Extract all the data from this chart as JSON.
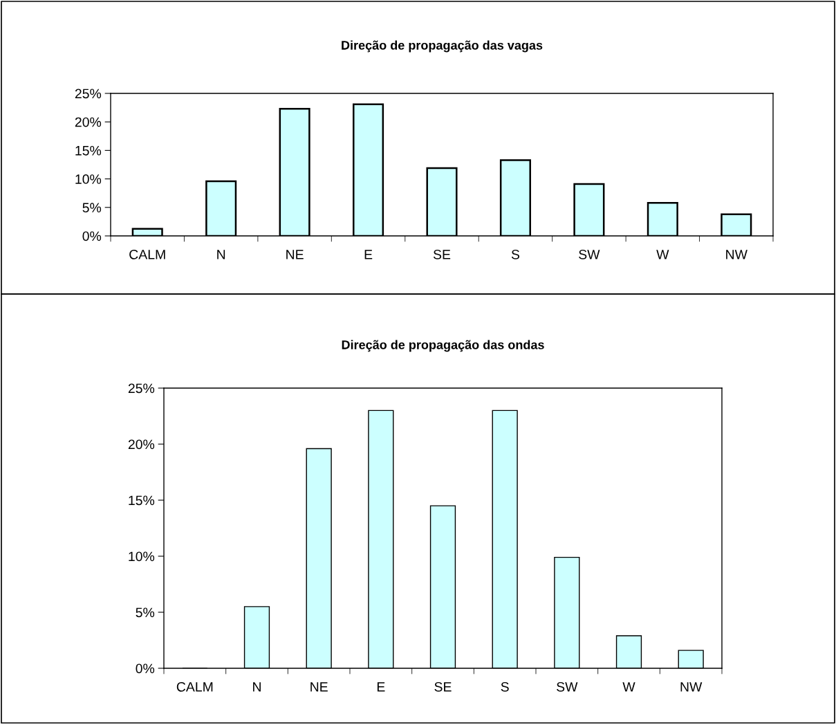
{
  "chart_data": [
    {
      "type": "bar",
      "title": "Direção de propagação das vagas",
      "categories": [
        "CALM",
        "N",
        "NE",
        "E",
        "SE",
        "S",
        "SW",
        "W",
        "NW"
      ],
      "values": [
        1.25,
        9.6,
        22.3,
        23.1,
        11.9,
        13.3,
        9.1,
        5.8,
        3.8
      ],
      "color": "#ccffff",
      "ylim": [
        0,
        25
      ],
      "yticks": [
        {
          "value": 0,
          "label": "0%"
        },
        {
          "value": 5,
          "label": "5%"
        },
        {
          "value": 10,
          "label": "10%"
        },
        {
          "value": 15,
          "label": "15%"
        },
        {
          "value": 20,
          "label": "20%"
        },
        {
          "value": 25,
          "label": "25%"
        }
      ],
      "grid": false,
      "legend": false
    },
    {
      "type": "bar",
      "title": "Direção de propagação das ondas",
      "categories": [
        "CALM",
        "N",
        "NE",
        "E",
        "SE",
        "S",
        "SW",
        "W",
        "NW"
      ],
      "values": [
        0,
        5.5,
        19.6,
        23.0,
        14.5,
        23.0,
        9.9,
        2.9,
        1.6
      ],
      "color": "#ccffff",
      "ylim": [
        0,
        25
      ],
      "yticks": [
        {
          "value": 0,
          "label": "0%"
        },
        {
          "value": 5,
          "label": "5%"
        },
        {
          "value": 10,
          "label": "10%"
        },
        {
          "value": 15,
          "label": "15%"
        },
        {
          "value": 20,
          "label": "20%"
        },
        {
          "value": 25,
          "label": "25%"
        }
      ],
      "grid": false,
      "legend": false
    }
  ]
}
